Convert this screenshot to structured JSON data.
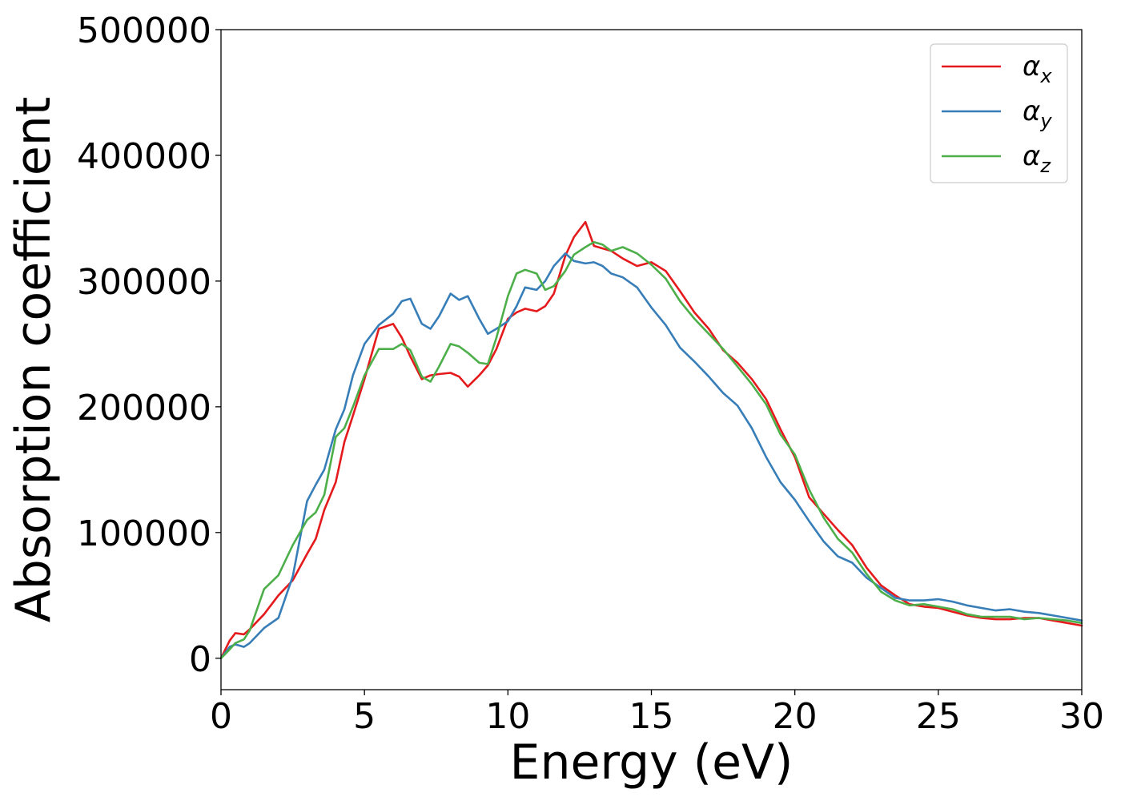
{
  "chart_data": {
    "type": "line",
    "title": "",
    "xlabel": "Energy (eV)",
    "ylabel": "Absorption coefficient",
    "xlim": [
      0,
      30
    ],
    "ylim": [
      -25000,
      500000
    ],
    "xticks": [
      0,
      5,
      10,
      15,
      20,
      25,
      30
    ],
    "yticks": [
      0,
      100000,
      200000,
      300000,
      400000,
      500000
    ],
    "grid": false,
    "legend_position": "top-right",
    "x": [
      0,
      0.3,
      0.5,
      0.8,
      1.0,
      1.5,
      2.0,
      2.5,
      3.0,
      3.3,
      3.6,
      4.0,
      4.3,
      4.6,
      5.0,
      5.5,
      6.0,
      6.3,
      6.6,
      7.0,
      7.3,
      7.6,
      8.0,
      8.3,
      8.6,
      9.0,
      9.3,
      9.6,
      10.0,
      10.3,
      10.6,
      11.0,
      11.3,
      11.6,
      12.0,
      12.3,
      12.7,
      13.0,
      13.3,
      13.6,
      14.0,
      14.5,
      15.0,
      15.5,
      16.0,
      16.5,
      17.0,
      17.5,
      18.0,
      18.5,
      19.0,
      19.5,
      20.0,
      20.5,
      21.0,
      21.5,
      22.0,
      22.5,
      23.0,
      23.5,
      24.0,
      24.5,
      25.0,
      25.5,
      26.0,
      26.5,
      27.0,
      27.5,
      28.0,
      28.5,
      29.0,
      29.5,
      30.0
    ],
    "series": [
      {
        "name": "α",
        "subscript": "x",
        "color": "#e41a1c",
        "values": [
          0,
          14000,
          20000,
          19000,
          23000,
          35000,
          50000,
          62000,
          83000,
          95000,
          118000,
          140000,
          172000,
          193000,
          222000,
          262000,
          266000,
          255000,
          240000,
          222000,
          225000,
          226000,
          227000,
          224000,
          216000,
          225000,
          233000,
          246000,
          270000,
          275000,
          278000,
          276000,
          280000,
          290000,
          320000,
          335000,
          347000,
          328000,
          326000,
          324000,
          318000,
          312000,
          315000,
          308000,
          292000,
          275000,
          262000,
          245000,
          235000,
          222000,
          206000,
          182000,
          160000,
          128000,
          115000,
          102000,
          90000,
          72000,
          58000,
          50000,
          43000,
          41000,
          40000,
          37000,
          34000,
          32000,
          31000,
          31000,
          32000,
          32000,
          30000,
          28000,
          26000
        ]
      },
      {
        "name": "α",
        "subscript": "y",
        "color": "#377eb8",
        "values": [
          0,
          9000,
          11000,
          9000,
          12000,
          24000,
          32000,
          65000,
          125000,
          138000,
          150000,
          182000,
          198000,
          225000,
          250000,
          265000,
          274000,
          284000,
          286000,
          266000,
          262000,
          272000,
          290000,
          285000,
          288000,
          270000,
          258000,
          262000,
          268000,
          280000,
          295000,
          293000,
          300000,
          312000,
          322000,
          316000,
          314000,
          315000,
          312000,
          306000,
          303000,
          295000,
          279000,
          265000,
          247000,
          236000,
          224000,
          211000,
          201000,
          183000,
          160000,
          140000,
          126000,
          109000,
          93000,
          81000,
          76000,
          64000,
          56000,
          48000,
          46000,
          46000,
          47000,
          45000,
          42000,
          40000,
          38000,
          39000,
          37000,
          36000,
          34000,
          32000,
          30000
        ]
      },
      {
        "name": "α",
        "subscript": "z",
        "color": "#4daf4a",
        "values": [
          0,
          7000,
          12000,
          15000,
          22000,
          55000,
          66000,
          90000,
          110000,
          116000,
          130000,
          176000,
          183000,
          200000,
          225000,
          246000,
          246000,
          250000,
          245000,
          224000,
          220000,
          232000,
          250000,
          248000,
          243000,
          235000,
          234000,
          255000,
          288000,
          306000,
          309000,
          306000,
          293000,
          296000,
          308000,
          321000,
          327000,
          331000,
          329000,
          324000,
          327000,
          322000,
          313000,
          302000,
          284000,
          270000,
          258000,
          246000,
          232000,
          218000,
          202000,
          178000,
          162000,
          134000,
          112000,
          95000,
          84000,
          67000,
          53000,
          46000,
          42000,
          43000,
          41000,
          39000,
          35000,
          33000,
          33000,
          33000,
          31000,
          32000,
          31000,
          30000,
          28000
        ]
      }
    ]
  }
}
